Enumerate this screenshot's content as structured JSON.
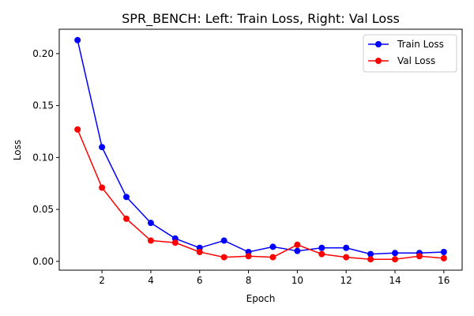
{
  "chart_data": {
    "type": "line",
    "title": "SPR_BENCH: Left: Train Loss, Right: Val Loss",
    "xlabel": "Epoch",
    "ylabel": "Loss",
    "x": [
      1,
      2,
      3,
      4,
      5,
      6,
      7,
      8,
      9,
      10,
      11,
      12,
      13,
      14,
      15,
      16
    ],
    "xlim": [
      0.25,
      16.75
    ],
    "ylim": [
      -0.0085,
      0.2235
    ],
    "x_ticks": [
      2,
      4,
      6,
      8,
      10,
      12,
      14,
      16
    ],
    "y_ticks": [
      0.0,
      0.05,
      0.1,
      0.15,
      0.2
    ],
    "y_tick_labels": [
      "0.00",
      "0.05",
      "0.10",
      "0.15",
      "0.20"
    ],
    "grid": false,
    "legend_position": "top-right",
    "series": [
      {
        "name": "Train Loss",
        "color": "#0000ff",
        "values": [
          0.213,
          0.11,
          0.062,
          0.037,
          0.022,
          0.013,
          0.02,
          0.009,
          0.014,
          0.01,
          0.013,
          0.013,
          0.007,
          0.008,
          0.008,
          0.009
        ]
      },
      {
        "name": "Val Loss",
        "color": "#ff0000",
        "values": [
          0.127,
          0.071,
          0.041,
          0.02,
          0.018,
          0.009,
          0.004,
          0.005,
          0.004,
          0.016,
          0.007,
          0.004,
          0.002,
          0.002,
          0.005,
          0.003
        ]
      }
    ]
  }
}
